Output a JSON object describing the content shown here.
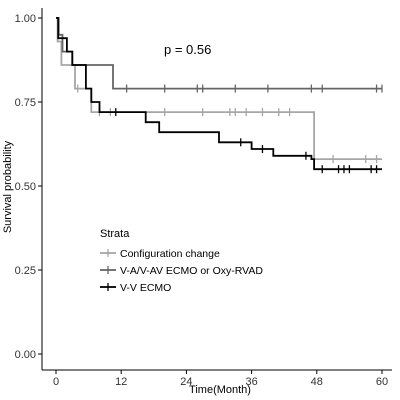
{
  "chart_data": {
    "type": "line",
    "subtype": "kaplan-meier step",
    "title": "",
    "xlabel": "Time(Month)",
    "ylabel": "Survival probability",
    "xlim": [
      0,
      60
    ],
    "ylim": [
      0,
      1
    ],
    "x_ticks": [
      0,
      12,
      24,
      36,
      48,
      60
    ],
    "y_ticks": [
      0.0,
      0.25,
      0.5,
      0.75,
      1.0
    ],
    "x_tick_labels": [
      "0",
      "12",
      "24",
      "36",
      "48",
      "60"
    ],
    "y_tick_labels": [
      "0.00",
      "0.25",
      "0.50",
      "0.75",
      "1.00"
    ],
    "grid": false,
    "annotation": "p = 0.56",
    "legend": {
      "title": "Strata",
      "placement": "bottom-left inside plot",
      "entries": [
        "Configuration change",
        "V-A/V-AV ECMO or Oxy-RVAD",
        "V-V ECMO"
      ]
    },
    "series": [
      {
        "name": "Configuration change",
        "color": "#a6a6a6",
        "steps": [
          [
            0,
            1.0
          ],
          [
            0.3,
            0.93
          ],
          [
            1,
            0.86
          ],
          [
            3.5,
            0.79
          ],
          [
            6.5,
            0.72
          ],
          [
            47.5,
            0.58
          ],
          [
            60,
            0.58
          ]
        ],
        "censor": [
          4,
          8,
          10,
          20,
          27,
          32,
          33,
          35,
          38,
          41,
          43,
          51,
          57,
          59
        ]
      },
      {
        "name": "V-A/V-AV ECMO or Oxy-RVAD",
        "color": "#666666",
        "steps": [
          [
            0,
            1.0
          ],
          [
            0.5,
            0.95
          ],
          [
            1.2,
            0.9
          ],
          [
            3,
            0.86
          ],
          [
            10.5,
            0.79
          ],
          [
            60,
            0.79
          ]
        ],
        "censor": [
          13,
          20,
          26,
          27,
          33,
          39,
          47,
          49,
          59,
          60
        ]
      },
      {
        "name": "V-V ECMO",
        "color": "#000000",
        "steps": [
          [
            0,
            1.0
          ],
          [
            0.4,
            0.94
          ],
          [
            2,
            0.9
          ],
          [
            3,
            0.86
          ],
          [
            5.5,
            0.79
          ],
          [
            6.5,
            0.75
          ],
          [
            8,
            0.72
          ],
          [
            16.5,
            0.69
          ],
          [
            19,
            0.66
          ],
          [
            30,
            0.63
          ],
          [
            36,
            0.61
          ],
          [
            40,
            0.59
          ],
          [
            47,
            0.58
          ],
          [
            47.5,
            0.55
          ],
          [
            60,
            0.55
          ]
        ],
        "censor": [
          11,
          34,
          38,
          46,
          49,
          52,
          53,
          54,
          58,
          59
        ]
      }
    ]
  }
}
